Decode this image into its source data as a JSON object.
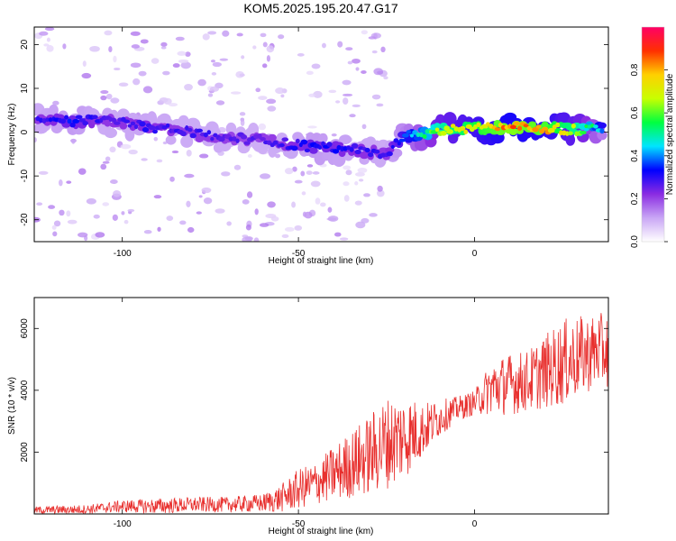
{
  "title": "KOM5.2025.195.20.47.G17",
  "chart_data": [
    {
      "type": "heatmap",
      "xlabel": "Height of straight line (km)",
      "ylabel": "Frequency (Hz)",
      "xlim": [
        -125,
        38
      ],
      "ylim": [
        -25,
        24
      ],
      "x_ticks": [
        -100,
        -50,
        0
      ],
      "y_ticks": [
        -20,
        -10,
        0,
        10,
        20
      ],
      "colorbar": {
        "label": "Normalized spectral amplitude",
        "range": [
          0,
          1
        ],
        "ticks": [
          "0.0",
          "0.2",
          "0.4",
          "0.6",
          "0.8"
        ],
        "colors": [
          "#ffffff",
          "#c9a6f5",
          "#8a2be2",
          "#0000ff",
          "#00e5ff",
          "#00ff40",
          "#c8ff00",
          "#ffd000",
          "#ff3000",
          "#ff0066"
        ]
      },
      "ridge": [
        {
          "x": -124,
          "y": 3.0,
          "v": 0.3
        },
        {
          "x": -115,
          "y": 2.5,
          "v": 0.35
        },
        {
          "x": -105,
          "y": 2.5,
          "v": 0.3
        },
        {
          "x": -95,
          "y": 1.5,
          "v": 0.32
        },
        {
          "x": -85,
          "y": 0.5,
          "v": 0.3
        },
        {
          "x": -75,
          "y": -1.0,
          "v": 0.3
        },
        {
          "x": -65,
          "y": -1.5,
          "v": 0.28
        },
        {
          "x": -55,
          "y": -2.5,
          "v": 0.3
        },
        {
          "x": -45,
          "y": -3.5,
          "v": 0.35
        },
        {
          "x": -35,
          "y": -4.0,
          "v": 0.32
        },
        {
          "x": -25,
          "y": -5.0,
          "v": 0.3
        },
        {
          "x": -20,
          "y": -1.0,
          "v": 0.4
        },
        {
          "x": -10,
          "y": 0.5,
          "v": 0.7
        },
        {
          "x": 0,
          "y": 1.0,
          "v": 0.8
        },
        {
          "x": 10,
          "y": 1.0,
          "v": 0.9
        },
        {
          "x": 20,
          "y": 1.0,
          "v": 0.85
        },
        {
          "x": 30,
          "y": 0.5,
          "v": 0.7
        },
        {
          "x": 37,
          "y": 1.0,
          "v": 0.4
        }
      ]
    },
    {
      "type": "line",
      "xlabel": "Height of straight line (km)",
      "ylabel": "SNR (10 * v/v)",
      "xlim": [
        -125,
        38
      ],
      "ylim": [
        0,
        7000
      ],
      "x_ticks": [
        -100,
        -50,
        0
      ],
      "y_ticks": [
        2000,
        4000,
        6000
      ],
      "color": "#e8302e",
      "envelope": [
        {
          "x": -125,
          "base": 120,
          "amp": 120
        },
        {
          "x": -110,
          "base": 150,
          "amp": 150
        },
        {
          "x": -100,
          "base": 250,
          "amp": 200
        },
        {
          "x": -90,
          "base": 250,
          "amp": 250
        },
        {
          "x": -80,
          "base": 300,
          "amp": 250
        },
        {
          "x": -70,
          "base": 300,
          "amp": 250
        },
        {
          "x": -60,
          "base": 350,
          "amp": 300
        },
        {
          "x": -55,
          "base": 500,
          "amp": 450
        },
        {
          "x": -50,
          "base": 800,
          "amp": 650
        },
        {
          "x": -45,
          "base": 1000,
          "amp": 700
        },
        {
          "x": -40,
          "base": 1300,
          "amp": 900
        },
        {
          "x": -35,
          "base": 1600,
          "amp": 1100
        },
        {
          "x": -30,
          "base": 1900,
          "amp": 1300
        },
        {
          "x": -25,
          "base": 2300,
          "amp": 1500
        },
        {
          "x": -20,
          "base": 2500,
          "amp": 1400
        },
        {
          "x": -15,
          "base": 2700,
          "amp": 900
        },
        {
          "x": -10,
          "base": 3100,
          "amp": 600
        },
        {
          "x": -5,
          "base": 3400,
          "amp": 400
        },
        {
          "x": 0,
          "base": 3600,
          "amp": 400
        },
        {
          "x": 5,
          "base": 4100,
          "amp": 900
        },
        {
          "x": 10,
          "base": 4200,
          "amp": 1000
        },
        {
          "x": 15,
          "base": 4300,
          "amp": 1000
        },
        {
          "x": 20,
          "base": 4600,
          "amp": 1200
        },
        {
          "x": 25,
          "base": 4900,
          "amp": 1400
        },
        {
          "x": 30,
          "base": 5100,
          "amp": 1300
        },
        {
          "x": 35,
          "base": 5300,
          "amp": 1200
        },
        {
          "x": 38,
          "base": 5300,
          "amp": 1200
        }
      ]
    }
  ]
}
